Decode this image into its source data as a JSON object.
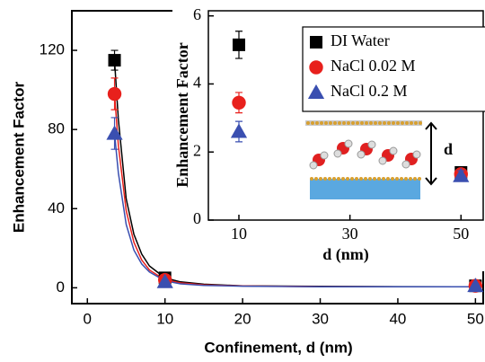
{
  "chart_data": [
    {
      "type": "scatter",
      "x_label": "Confinement, d (nm)",
      "y_label": "Enhancement Factor",
      "xlim": [
        -2,
        51
      ],
      "ylim": [
        -8,
        140
      ],
      "xticks": [
        0,
        10,
        20,
        30,
        40,
        50
      ],
      "yticks": [
        0,
        40,
        80,
        120
      ],
      "series": [
        {
          "color": "#000000",
          "marker": "square",
          "x": [
            3.5,
            10,
            50
          ],
          "values": [
            115,
            5,
            1
          ],
          "errors": [
            5,
            1,
            1
          ]
        },
        {
          "color": "#e8201c",
          "marker": "circle",
          "x": [
            3.5,
            10,
            50
          ],
          "values": [
            98,
            4,
            1
          ],
          "errors": [
            8,
            1,
            1
          ]
        },
        {
          "color": "#3a4fb0",
          "marker": "triangle",
          "x": [
            3.5,
            10,
            50
          ],
          "values": [
            78,
            3,
            1
          ],
          "errors": [
            8,
            1,
            1
          ]
        }
      ],
      "fits": [
        {
          "color": "#000000",
          "x": [
            3.5,
            4,
            5,
            6,
            7,
            8,
            10,
            12,
            15,
            20,
            30,
            40,
            50
          ],
          "values": [
            115,
            85,
            45,
            27,
            17,
            11,
            5,
            3,
            1.8,
            1,
            0.7,
            0.6,
            0.5
          ]
        },
        {
          "color": "#e8201c",
          "x": [
            3.5,
            4,
            5,
            6,
            7,
            8,
            10,
            12,
            15,
            20,
            30,
            40,
            50
          ],
          "values": [
            98,
            72,
            39,
            23,
            14,
            9,
            4,
            2.5,
            1.5,
            0.9,
            0.6,
            0.5,
            0.5
          ]
        },
        {
          "color": "#3a4fb0",
          "x": [
            3.5,
            4,
            5,
            6,
            7,
            8,
            10,
            12,
            15,
            20,
            30,
            40,
            50
          ],
          "values": [
            78,
            58,
            32,
            19,
            12,
            8,
            3.5,
            2,
            1.2,
            0.8,
            0.5,
            0.5,
            0.5
          ]
        }
      ]
    },
    {
      "type": "scatter",
      "x_label": "d (nm)",
      "y_label": "Enhancement Factor",
      "xlim": [
        4.5,
        54
      ],
      "ylim": [
        0,
        6.15
      ],
      "xticks": [
        10,
        30,
        50
      ],
      "yticks": [
        0,
        2,
        4,
        6
      ],
      "legend": "upper right",
      "diagram_label": "d",
      "series": [
        {
          "name": "DI Water",
          "color": "#000000",
          "marker": "square",
          "x": [
            10,
            50
          ],
          "values": [
            5.15,
            1.4
          ],
          "errors": [
            0.4,
            0.15
          ]
        },
        {
          "name": "NaCl 0.02 M",
          "color": "#e8201c",
          "marker": "circle",
          "x": [
            10,
            50
          ],
          "values": [
            3.45,
            1.35
          ],
          "errors": [
            0.3,
            0.15
          ]
        },
        {
          "name": "NaCl 0.2 M",
          "color": "#3a4fb0",
          "marker": "triangle",
          "x": [
            10,
            50
          ],
          "values": [
            2.6,
            1.3
          ],
          "errors": [
            0.3,
            0.15
          ]
        }
      ]
    }
  ]
}
